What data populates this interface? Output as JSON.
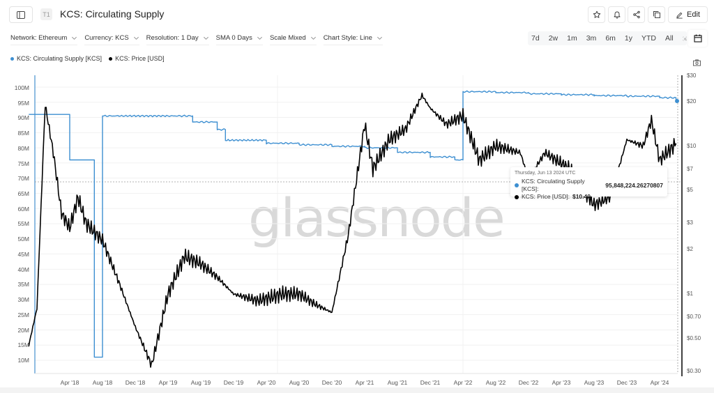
{
  "header": {
    "tier_badge": "T1",
    "title": "KCS: Circulating Supply",
    "edit_label": "Edit",
    "icons": [
      "sidebar-icon",
      "star-icon",
      "bell-icon",
      "share-icon",
      "copy-icon",
      "pencil-icon"
    ]
  },
  "filters": [
    {
      "label": "Network: Ethereum"
    },
    {
      "label": "Currency: KCS"
    },
    {
      "label": "Resolution: 1 Day"
    },
    {
      "label": "SMA 0 Days"
    },
    {
      "label": "Scale Mixed"
    },
    {
      "label": "Chart Style: Line"
    }
  ],
  "range_buttons": [
    "7d",
    "2w",
    "1m",
    "3m",
    "6m",
    "1y",
    "YTD",
    "All"
  ],
  "legend": [
    {
      "label": "KCS: Circulating Supply [KCS]",
      "color": "#3d8fd1"
    },
    {
      "label": "KCS: Price [USD]",
      "color": "#000000"
    }
  ],
  "watermark": "glassnode",
  "tooltip": {
    "date": "Thursday, Jun 13 2024 UTC",
    "supply_label": "KCS: Circulating Supply [KCS]:",
    "supply_value": "95,848,224.26270807",
    "price_label": "KCS: Price [USD]:",
    "price_value": "$10.40"
  },
  "chart_data": {
    "type": "line",
    "title": "KCS: Circulating Supply",
    "xlabel": "",
    "ylabel_left": "Circulating Supply [KCS]",
    "ylabel_right": "Price [USD]",
    "x_ticks": [
      "Apr '18",
      "Aug '18",
      "Dec '18",
      "Apr '19",
      "Aug '19",
      "Dec '19",
      "Apr '20",
      "Aug '20",
      "Dec '20",
      "Apr '21",
      "Aug '21",
      "Dec '21",
      "Apr '22",
      "Aug '22",
      "Dec '22",
      "Apr '23",
      "Aug '23",
      "Dec '23",
      "Apr '24"
    ],
    "y_left_ticks": [
      "10M",
      "15M",
      "20M",
      "25M",
      "30M",
      "35M",
      "40M",
      "45M",
      "50M",
      "55M",
      "60M",
      "65M",
      "70M",
      "75M",
      "80M",
      "85M",
      "90M",
      "95M",
      "100M"
    ],
    "y_left_range": [
      10000000,
      100000000
    ],
    "y_right_ticks": [
      "$0.30",
      "$0.50",
      "$0.70",
      "$1",
      "$2",
      "$3",
      "$5",
      "$7",
      "$10",
      "$20",
      "$30"
    ],
    "y_right_range": [
      0.3,
      30
    ],
    "y_right_scale": "log",
    "grid": true,
    "legend_position": "top-left",
    "series": [
      {
        "name": "KCS: Circulating Supply [KCS]",
        "color": "#3d8fd1",
        "axis": "left",
        "x": [
          "2017-11",
          "2018-03",
          "2018-04",
          "2018-06",
          "2018-07",
          "2018-08",
          "2018-10",
          "2019-04",
          "2019-07",
          "2019-10",
          "2019-11",
          "2020-04",
          "2020-08",
          "2020-12",
          "2021-04",
          "2021-08",
          "2021-12",
          "2022-03",
          "2022-04",
          "2022-08",
          "2022-12",
          "2023-04",
          "2023-08",
          "2023-12",
          "2024-04",
          "2024-06"
        ],
        "values": [
          91000000,
          91000000,
          76000000,
          76000000,
          11000000,
          90500000,
          90500000,
          90500000,
          88500000,
          86000000,
          82500000,
          81500000,
          81000000,
          80500000,
          80000000,
          78500000,
          77000000,
          76000000,
          98500000,
          98200000,
          97800000,
          97500000,
          97200000,
          97000000,
          96500000,
          95848224
        ]
      },
      {
        "name": "KCS: Price [USD]",
        "color": "#000000",
        "axis": "right",
        "x": [
          "2017-11",
          "2017-12",
          "2018-01",
          "2018-02",
          "2018-03",
          "2018-04",
          "2018-05",
          "2018-06",
          "2018-08",
          "2018-10",
          "2018-12",
          "2019-02",
          "2019-04",
          "2019-06",
          "2019-08",
          "2019-10",
          "2019-12",
          "2020-03",
          "2020-06",
          "2020-08",
          "2020-10",
          "2020-12",
          "2021-02",
          "2021-04",
          "2021-05",
          "2021-07",
          "2021-09",
          "2021-11",
          "2021-12",
          "2022-02",
          "2022-04",
          "2022-06",
          "2022-08",
          "2022-11",
          "2022-12",
          "2023-02",
          "2023-05",
          "2023-08",
          "2023-10",
          "2023-12",
          "2024-02",
          "2024-03",
          "2024-04",
          "2024-06"
        ],
        "values": [
          0.45,
          0.8,
          19,
          9,
          3.5,
          2.8,
          4.5,
          3.0,
          2.3,
          1.2,
          0.6,
          0.33,
          1.0,
          1.8,
          1.6,
          1.3,
          1.0,
          0.9,
          1.0,
          1.0,
          0.85,
          0.75,
          2.5,
          14,
          7,
          11,
          13,
          22,
          18,
          14,
          16,
          8,
          10,
          9,
          6,
          9,
          7,
          4.0,
          4.5,
          11,
          10,
          15,
          8,
          10.4
        ]
      }
    ],
    "annotations": [
      {
        "type": "crosshair",
        "date": "Thursday, Jun 13 2024 UTC",
        "supply": 95848224.26270807,
        "price": 10.4
      }
    ]
  }
}
